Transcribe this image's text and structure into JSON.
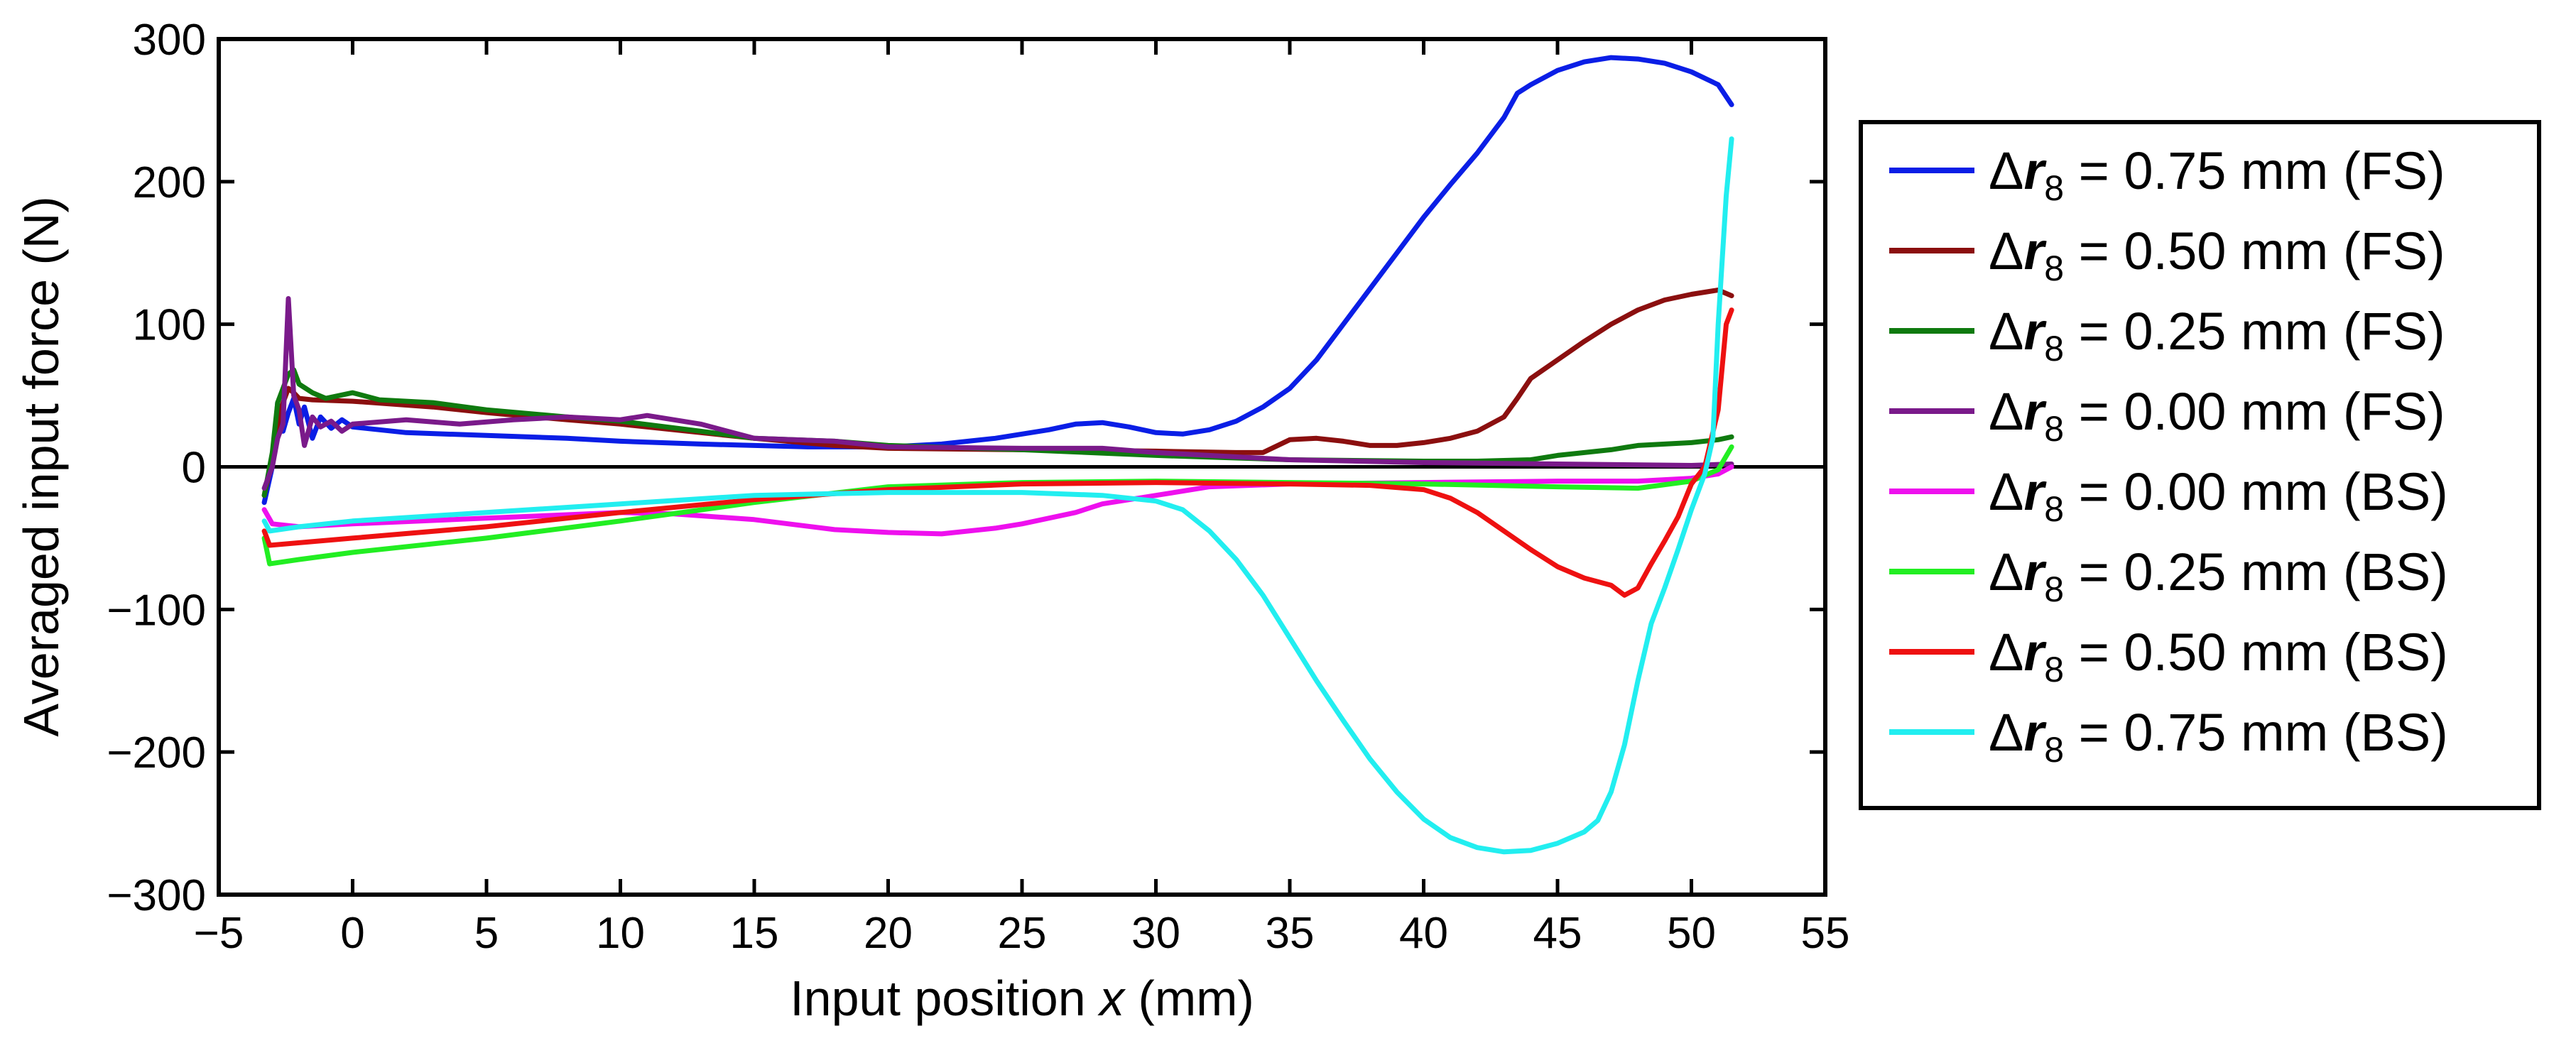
{
  "chart_data": {
    "type": "line",
    "xlabel_parts": [
      "Input position ",
      "x",
      " (mm)"
    ],
    "ylabel": "Averaged input force (N)",
    "xlim": [
      -5,
      55
    ],
    "ylim": [
      -300,
      300
    ],
    "xticks": [
      -5,
      0,
      5,
      10,
      15,
      20,
      25,
      30,
      35,
      40,
      45,
      50,
      55
    ],
    "yticks": [
      -300,
      -200,
      -100,
      0,
      100,
      200,
      300
    ],
    "xtick_labels": [
      "−5",
      "0",
      "5",
      "10",
      "15",
      "20",
      "25",
      "30",
      "35",
      "40",
      "45",
      "50",
      "55"
    ],
    "ytick_labels": [
      "−300",
      "−200",
      "−100",
      "0",
      "100",
      "200",
      "300"
    ],
    "zero_line": true,
    "legend_position": "right-outside",
    "legend_symbol": "Δr",
    "legend_subscript": "8",
    "series": [
      {
        "name": "Δr8 = 0.75 mm (FS)",
        "legend_rest": " = 0.75 mm (FS)",
        "color": "#0a1ee6",
        "points": [
          [
            -3.3,
            -25
          ],
          [
            -3.0,
            0
          ],
          [
            -2.8,
            45
          ],
          [
            -2.6,
            25
          ],
          [
            -2.4,
            38
          ],
          [
            -2.2,
            48
          ],
          [
            -2.0,
            30
          ],
          [
            -1.8,
            42
          ],
          [
            -1.5,
            20
          ],
          [
            -1.2,
            35
          ],
          [
            -0.8,
            27
          ],
          [
            -0.4,
            33
          ],
          [
            0,
            28
          ],
          [
            2,
            24
          ],
          [
            5,
            22
          ],
          [
            8,
            20
          ],
          [
            10,
            18
          ],
          [
            13,
            16
          ],
          [
            15,
            15
          ],
          [
            17,
            14
          ],
          [
            20,
            14
          ],
          [
            22,
            16
          ],
          [
            24,
            20
          ],
          [
            26,
            26
          ],
          [
            27,
            30
          ],
          [
            28,
            31
          ],
          [
            29,
            28
          ],
          [
            30,
            24
          ],
          [
            31,
            23
          ],
          [
            32,
            26
          ],
          [
            33,
            32
          ],
          [
            34,
            42
          ],
          [
            35,
            55
          ],
          [
            36,
            75
          ],
          [
            37,
            100
          ],
          [
            38,
            125
          ],
          [
            39,
            150
          ],
          [
            40,
            175
          ],
          [
            41,
            198
          ],
          [
            42,
            220
          ],
          [
            43,
            245
          ],
          [
            43.5,
            262
          ],
          [
            44,
            268
          ],
          [
            45,
            278
          ],
          [
            46,
            284
          ],
          [
            47,
            287
          ],
          [
            48,
            286
          ],
          [
            49,
            283
          ],
          [
            50,
            277
          ],
          [
            51,
            268
          ],
          [
            51.5,
            254
          ]
        ]
      },
      {
        "name": "Δr8 = 0.50 mm (FS)",
        "legend_rest": " = 0.50 mm (FS)",
        "color": "#8b0f0f",
        "points": [
          [
            -3.3,
            -20
          ],
          [
            -3.0,
            5
          ],
          [
            -2.8,
            30
          ],
          [
            -2.6,
            45
          ],
          [
            -2.4,
            55
          ],
          [
            -2.2,
            52
          ],
          [
            -2.0,
            48
          ],
          [
            -1.5,
            47
          ],
          [
            0,
            46
          ],
          [
            3,
            42
          ],
          [
            5,
            38
          ],
          [
            8,
            33
          ],
          [
            10,
            30
          ],
          [
            12,
            26
          ],
          [
            15,
            20
          ],
          [
            18,
            15
          ],
          [
            20,
            13
          ],
          [
            25,
            12
          ],
          [
            30,
            11
          ],
          [
            33,
            10
          ],
          [
            34,
            10
          ],
          [
            35,
            19
          ],
          [
            36,
            20
          ],
          [
            37,
            18
          ],
          [
            38,
            15
          ],
          [
            39,
            15
          ],
          [
            40,
            17
          ],
          [
            41,
            20
          ],
          [
            42,
            25
          ],
          [
            43,
            35
          ],
          [
            43.5,
            48
          ],
          [
            44,
            62
          ],
          [
            45,
            75
          ],
          [
            46,
            88
          ],
          [
            47,
            100
          ],
          [
            48,
            110
          ],
          [
            49,
            117
          ],
          [
            50,
            121
          ],
          [
            51,
            124
          ],
          [
            51.5,
            120
          ]
        ]
      },
      {
        "name": "Δr8 = 0.25 mm (FS)",
        "legend_rest": " = 0.25 mm (FS)",
        "color": "#0f7a0f",
        "points": [
          [
            -3.3,
            -20
          ],
          [
            -3.0,
            10
          ],
          [
            -2.8,
            45
          ],
          [
            -2.6,
            55
          ],
          [
            -2.4,
            65
          ],
          [
            -2.2,
            68
          ],
          [
            -2.0,
            58
          ],
          [
            -1.5,
            52
          ],
          [
            -1,
            48
          ],
          [
            0,
            52
          ],
          [
            1,
            47
          ],
          [
            3,
            45
          ],
          [
            5,
            40
          ],
          [
            8,
            35
          ],
          [
            10,
            32
          ],
          [
            13,
            25
          ],
          [
            15,
            20
          ],
          [
            18,
            18
          ],
          [
            20,
            15
          ],
          [
            25,
            12
          ],
          [
            30,
            8
          ],
          [
            35,
            5
          ],
          [
            40,
            4
          ],
          [
            42,
            4
          ],
          [
            44,
            5
          ],
          [
            45,
            8
          ],
          [
            47,
            12
          ],
          [
            48,
            15
          ],
          [
            50,
            17
          ],
          [
            51,
            19
          ],
          [
            51.5,
            21
          ]
        ]
      },
      {
        "name": "Δr8 = 0.00 mm (FS)",
        "legend_rest": " = 0.00 mm (FS)",
        "color": "#7a1a8a",
        "points": [
          [
            -3.3,
            -15
          ],
          [
            -3.0,
            0
          ],
          [
            -2.8,
            20
          ],
          [
            -2.6,
            30
          ],
          [
            -2.4,
            118
          ],
          [
            -2.2,
            50
          ],
          [
            -2.0,
            40
          ],
          [
            -1.8,
            15
          ],
          [
            -1.5,
            35
          ],
          [
            -1.2,
            28
          ],
          [
            -0.8,
            32
          ],
          [
            -0.4,
            25
          ],
          [
            0,
            30
          ],
          [
            2,
            33
          ],
          [
            4,
            30
          ],
          [
            6,
            33
          ],
          [
            8,
            35
          ],
          [
            10,
            33
          ],
          [
            11,
            36
          ],
          [
            13,
            30
          ],
          [
            15,
            20
          ],
          [
            18,
            18
          ],
          [
            20,
            14
          ],
          [
            25,
            13
          ],
          [
            28,
            13
          ],
          [
            30,
            10
          ],
          [
            35,
            5
          ],
          [
            40,
            3
          ],
          [
            45,
            2
          ],
          [
            50,
            1
          ],
          [
            51.5,
            2
          ]
        ]
      },
      {
        "name": "Δr8 = 0.00 mm (BS)",
        "legend_rest": " = 0.00 mm (BS)",
        "color": "#ee10ee",
        "points": [
          [
            -3.3,
            -30
          ],
          [
            -3.0,
            -40
          ],
          [
            -2,
            -42
          ],
          [
            0,
            -40
          ],
          [
            5,
            -36
          ],
          [
            10,
            -32
          ],
          [
            12,
            -33
          ],
          [
            15,
            -37
          ],
          [
            18,
            -44
          ],
          [
            20,
            -46
          ],
          [
            22,
            -47
          ],
          [
            24,
            -43
          ],
          [
            25,
            -40
          ],
          [
            27,
            -32
          ],
          [
            28,
            -26
          ],
          [
            30,
            -20
          ],
          [
            32,
            -14
          ],
          [
            35,
            -12
          ],
          [
            40,
            -11
          ],
          [
            45,
            -10
          ],
          [
            48,
            -10
          ],
          [
            49,
            -9
          ],
          [
            50,
            -8
          ],
          [
            51,
            -5
          ],
          [
            51.5,
            0
          ]
        ]
      },
      {
        "name": "Δr8 = 0.25 mm (BS)",
        "legend_rest": " = 0.25 mm (BS)",
        "color": "#22ee22",
        "points": [
          [
            -3.3,
            -50
          ],
          [
            -3.1,
            -68
          ],
          [
            -2,
            -65
          ],
          [
            0,
            -60
          ],
          [
            5,
            -50
          ],
          [
            10,
            -38
          ],
          [
            15,
            -25
          ],
          [
            20,
            -14
          ],
          [
            25,
            -11
          ],
          [
            30,
            -10
          ],
          [
            35,
            -11
          ],
          [
            40,
            -12
          ],
          [
            45,
            -14
          ],
          [
            48,
            -15
          ],
          [
            50,
            -10
          ],
          [
            51,
            -2
          ],
          [
            51.5,
            14
          ]
        ]
      },
      {
        "name": "Δr8 = 0.50 mm (BS)",
        "legend_rest": " = 0.50 mm (BS)",
        "color": "#ee1111",
        "points": [
          [
            -3.3,
            -45
          ],
          [
            -3.1,
            -55
          ],
          [
            0,
            -50
          ],
          [
            5,
            -42
          ],
          [
            10,
            -32
          ],
          [
            15,
            -23
          ],
          [
            20,
            -16
          ],
          [
            25,
            -12
          ],
          [
            30,
            -11
          ],
          [
            35,
            -12
          ],
          [
            38,
            -13
          ],
          [
            40,
            -16
          ],
          [
            41,
            -22
          ],
          [
            42,
            -32
          ],
          [
            43,
            -45
          ],
          [
            44,
            -58
          ],
          [
            45,
            -70
          ],
          [
            46,
            -78
          ],
          [
            47,
            -83
          ],
          [
            47.5,
            -90
          ],
          [
            48,
            -85
          ],
          [
            48.5,
            -68
          ],
          [
            49,
            -52
          ],
          [
            49.5,
            -35
          ],
          [
            50,
            -12
          ],
          [
            50.5,
            0
          ],
          [
            51,
            40
          ],
          [
            51.3,
            100
          ],
          [
            51.5,
            110
          ]
        ]
      },
      {
        "name": "Δr8 = 0.75 mm (BS)",
        "legend_rest": " = 0.75 mm (BS)",
        "color": "#22eef0",
        "points": [
          [
            -3.3,
            -38
          ],
          [
            -3.1,
            -45
          ],
          [
            -2,
            -42
          ],
          [
            0,
            -38
          ],
          [
            5,
            -32
          ],
          [
            10,
            -26
          ],
          [
            15,
            -20
          ],
          [
            20,
            -18
          ],
          [
            25,
            -18
          ],
          [
            28,
            -20
          ],
          [
            30,
            -24
          ],
          [
            31,
            -30
          ],
          [
            32,
            -45
          ],
          [
            33,
            -65
          ],
          [
            34,
            -90
          ],
          [
            35,
            -120
          ],
          [
            36,
            -150
          ],
          [
            37,
            -178
          ],
          [
            38,
            -205
          ],
          [
            39,
            -228
          ],
          [
            40,
            -247
          ],
          [
            41,
            -260
          ],
          [
            42,
            -267
          ],
          [
            43,
            -270
          ],
          [
            44,
            -269
          ],
          [
            45,
            -264
          ],
          [
            46,
            -256
          ],
          [
            46.5,
            -248
          ],
          [
            47,
            -228
          ],
          [
            47.5,
            -195
          ],
          [
            48,
            -150
          ],
          [
            48.5,
            -110
          ],
          [
            49,
            -85
          ],
          [
            49.5,
            -58
          ],
          [
            50,
            -30
          ],
          [
            50.5,
            -5
          ],
          [
            50.8,
            20
          ],
          [
            51,
            100
          ],
          [
            51.3,
            190
          ],
          [
            51.5,
            230
          ]
        ]
      }
    ]
  }
}
